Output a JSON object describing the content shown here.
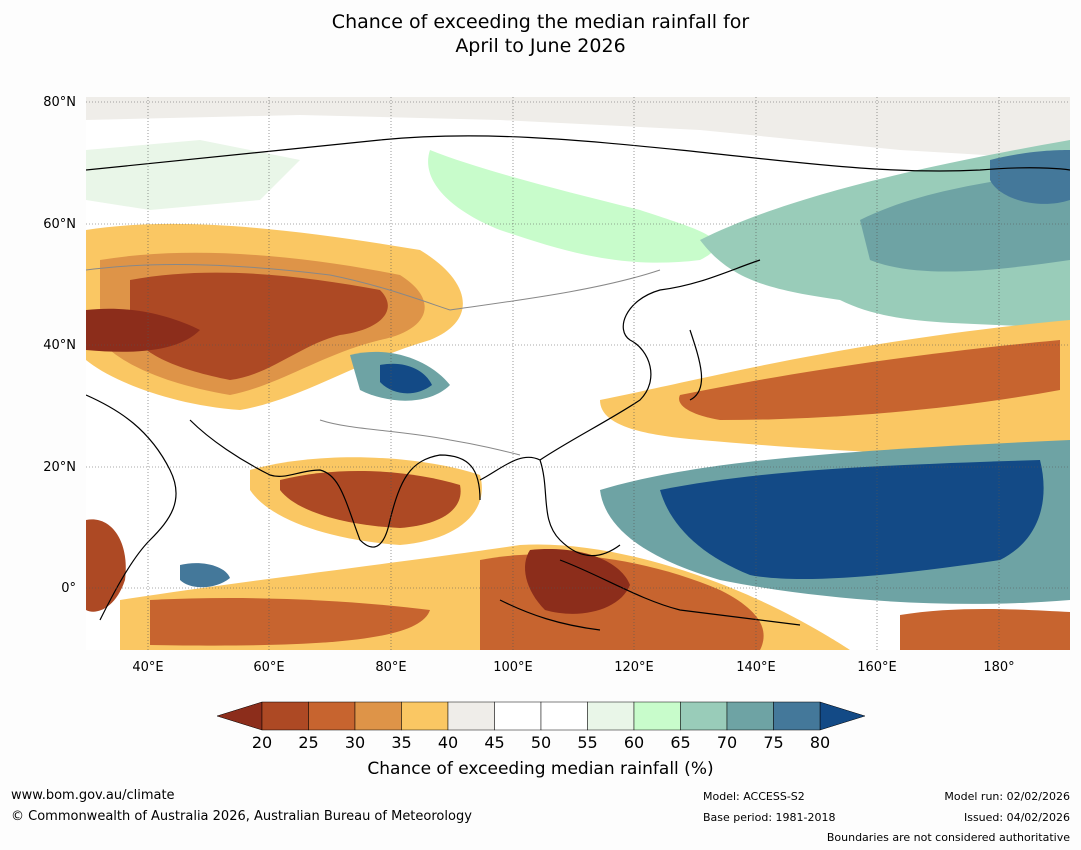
{
  "title": {
    "line1": "Chance of exceeding the median rainfall for",
    "line2": "April to June 2026"
  },
  "map": {
    "lat_labels": [
      "80°N",
      "60°N",
      "40°N",
      "20°N",
      "0°"
    ],
    "lon_labels": [
      "40°E",
      "60°E",
      "80°E",
      "100°E",
      "120°E",
      "140°E",
      "160°E",
      "180°"
    ],
    "grid": true
  },
  "colorbar": {
    "ticks": [
      "20",
      "25",
      "30",
      "35",
      "40",
      "45",
      "50",
      "55",
      "60",
      "65",
      "70",
      "75",
      "80"
    ],
    "colors": [
      "#8c2d1b",
      "#ad4924",
      "#c7642f",
      "#de9448",
      "#fac763",
      "#efede9",
      "#ffffff",
      "#ffffff",
      "#e9f6e8",
      "#c8fccb",
      "#99ccb9",
      "#6ea3a4",
      "#44789a",
      "#134a86"
    ],
    "label": "Chance of exceeding median rainfall (%)"
  },
  "footer": {
    "url": "www.bom.gov.au/climate",
    "copyright": "© Commonwealth of Australia 2026, Australian Bureau of Meteorology",
    "model": "Model: ACCESS-S2",
    "base_period": "Base period: 1981-2018",
    "model_run": "Model run: 02/02/2026",
    "issued": "Issued: 04/02/2026",
    "disclaimer": "Boundaries are not considered authoritative"
  }
}
